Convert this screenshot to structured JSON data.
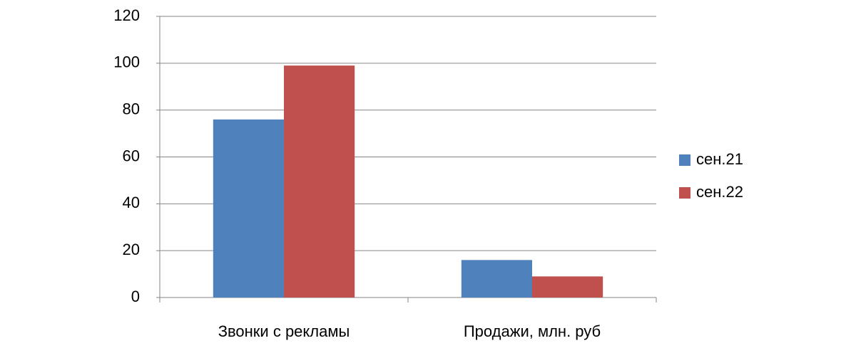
{
  "chart_data": {
    "type": "bar",
    "categories": [
      "Звонки с рекламы",
      "Продажи, млн. руб"
    ],
    "series": [
      {
        "name": "сен.21",
        "color": "#4f81bd",
        "values": [
          76,
          16
        ]
      },
      {
        "name": "сен.22",
        "color": "#c0504d",
        "values": [
          99,
          9
        ]
      }
    ],
    "ylim": [
      0,
      120
    ],
    "yticks": [
      0,
      20,
      40,
      60,
      80,
      100,
      120
    ],
    "grid": true,
    "legend": "right"
  }
}
